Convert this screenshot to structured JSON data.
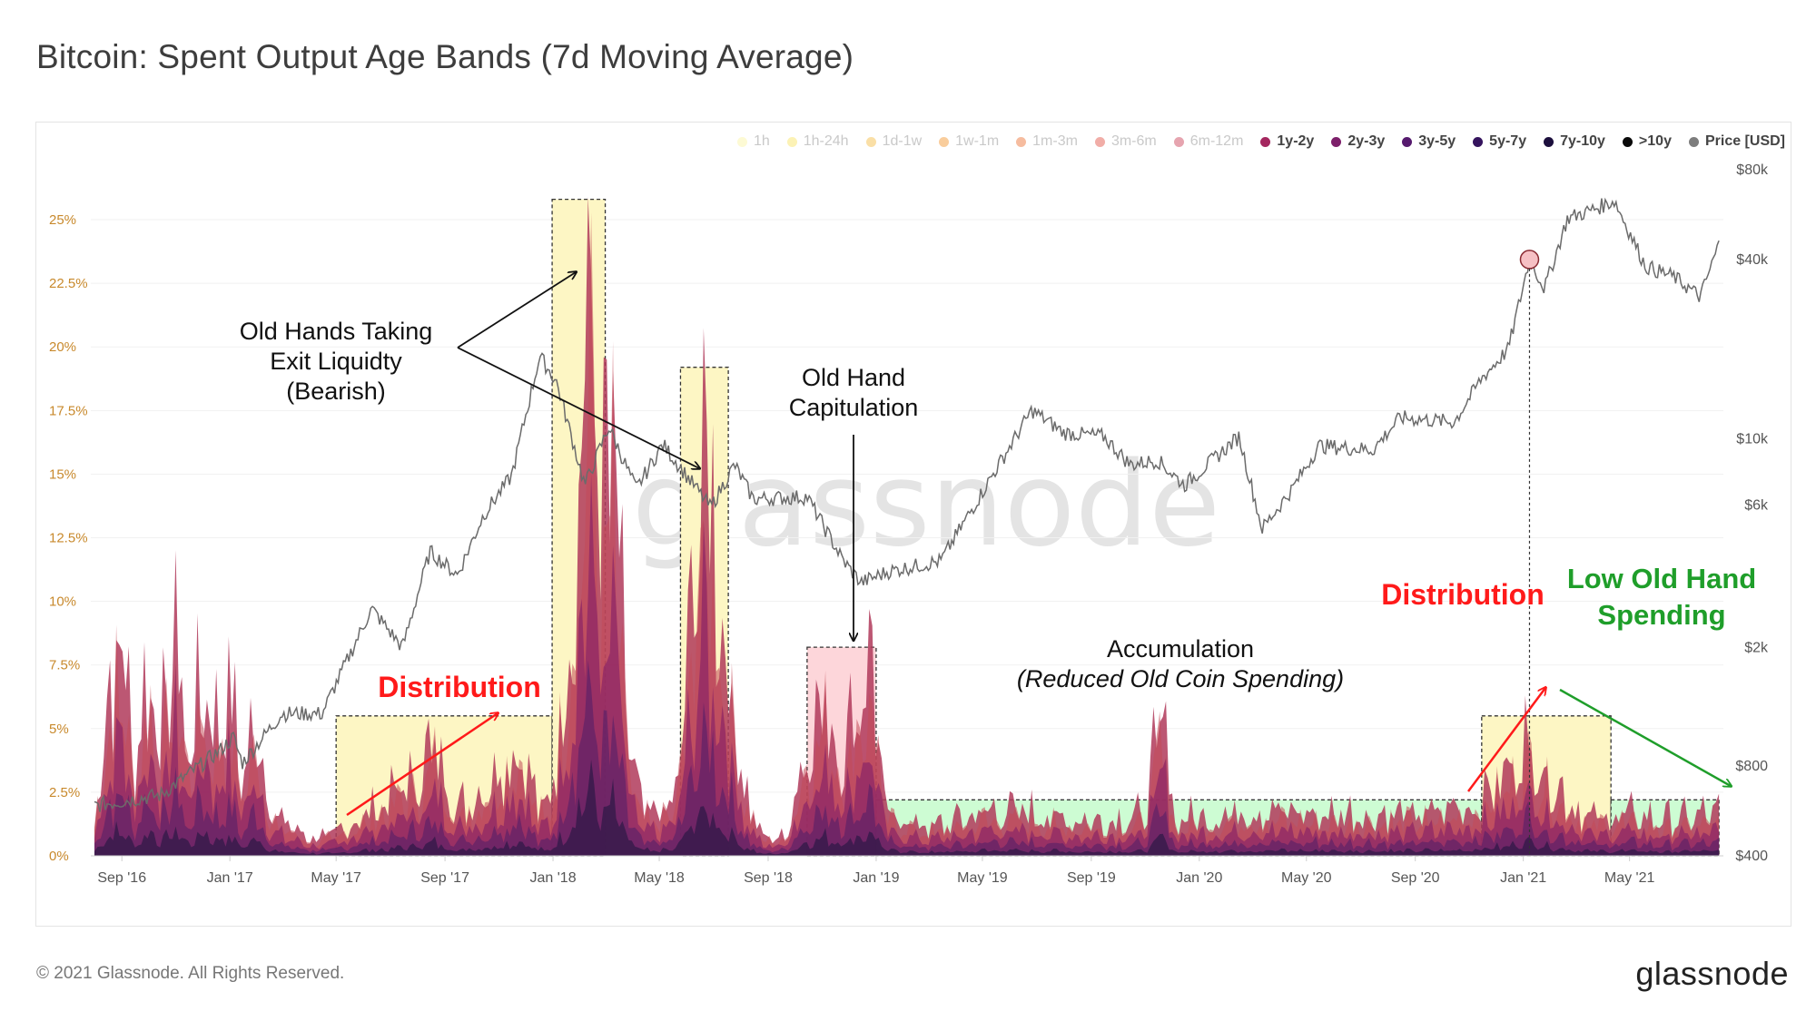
{
  "title": "Bitcoin: Spent Output Age Bands (7d Moving Average)",
  "footer": {
    "copyright": "© 2021 Glassnode. All Rights Reserved.",
    "logo": "glassnode"
  },
  "watermark": "glassnode",
  "legend": [
    {
      "label": "1h",
      "color": "#fbf5a0",
      "active": false
    },
    {
      "label": "1h-24h",
      "color": "#f8e35c",
      "active": false
    },
    {
      "label": "1d-1w",
      "color": "#f5b83a",
      "active": false
    },
    {
      "label": "1w-1m",
      "color": "#f19024",
      "active": false
    },
    {
      "label": "1m-3m",
      "color": "#ec6a2b",
      "active": false
    },
    {
      "label": "3m-6m",
      "color": "#e04a3c",
      "active": false
    },
    {
      "label": "6m-12m",
      "color": "#c8354d",
      "active": false
    },
    {
      "label": "1y-2y",
      "color": "#a4275f",
      "active": true
    },
    {
      "label": "2y-3y",
      "color": "#7d1f6a",
      "active": true
    },
    {
      "label": "3y-5y",
      "color": "#561a6e",
      "active": true
    },
    {
      "label": "5y-7y",
      "color": "#35145e",
      "active": true
    },
    {
      "label": "7y-10y",
      "color": "#1c0f3d",
      "active": true
    },
    {
      "label": ">10y",
      "color": "#0a0a0a",
      "active": true
    },
    {
      "label": "Price [USD]",
      "color": "#7d7d7d",
      "active": true
    }
  ],
  "chart_data": {
    "type": "area",
    "x_ticks": [
      "Sep '16",
      "Jan '17",
      "May '17",
      "Sep '17",
      "Jan '18",
      "May '18",
      "Sep '18",
      "Jan '19",
      "May '19",
      "Sep '19",
      "Jan '20",
      "May '20",
      "Sep '20",
      "Jan '21",
      "May '21"
    ],
    "x_range": [
      "2016-08-01",
      "2021-08-15"
    ],
    "y_left": {
      "ticks": [
        "0%",
        "2.5%",
        "5%",
        "7.5%",
        "10%",
        "12.5%",
        "15%",
        "17.5%",
        "20%",
        "22.5%",
        "25%"
      ],
      "range": [
        0,
        26.5
      ]
    },
    "y_right": {
      "ticks": [
        "$400",
        "$800",
        "$2k",
        "$6k",
        "$10k",
        "$40k",
        "$80k"
      ],
      "values": [
        400,
        800,
        2000,
        6000,
        10000,
        40000,
        80000
      ],
      "scale": "log"
    },
    "old_coin_spend_pct": [
      {
        "date": "2016-08-01",
        "value": 1.5
      },
      {
        "date": "2016-08-15",
        "value": 6.5
      },
      {
        "date": "2016-09-01",
        "value": 9.5
      },
      {
        "date": "2016-09-15",
        "value": 3.5
      },
      {
        "date": "2016-10-01",
        "value": 8.5
      },
      {
        "date": "2016-10-15",
        "value": 5.0
      },
      {
        "date": "2016-11-01",
        "value": 9.5
      },
      {
        "date": "2016-11-15",
        "value": 4.0
      },
      {
        "date": "2016-12-01",
        "value": 8.0
      },
      {
        "date": "2016-12-15",
        "value": 5.5
      },
      {
        "date": "2017-01-01",
        "value": 7.0
      },
      {
        "date": "2017-01-15",
        "value": 3.0
      },
      {
        "date": "2017-02-01",
        "value": 6.5
      },
      {
        "date": "2017-02-15",
        "value": 2.0
      },
      {
        "date": "2017-03-01",
        "value": 1.5
      },
      {
        "date": "2017-04-01",
        "value": 0.8
      },
      {
        "date": "2017-05-01",
        "value": 0.9
      },
      {
        "date": "2017-06-01",
        "value": 1.8
      },
      {
        "date": "2017-07-01",
        "value": 2.5
      },
      {
        "date": "2017-08-01",
        "value": 3.5
      },
      {
        "date": "2017-08-20",
        "value": 4.8
      },
      {
        "date": "2017-09-15",
        "value": 2.0
      },
      {
        "date": "2017-10-15",
        "value": 3.0
      },
      {
        "date": "2017-11-10",
        "value": 4.2
      },
      {
        "date": "2017-11-25",
        "value": 5.2
      },
      {
        "date": "2017-12-15",
        "value": 2.0
      },
      {
        "date": "2017-12-31",
        "value": 2.5
      },
      {
        "date": "2018-01-20",
        "value": 10.0
      },
      {
        "date": "2018-02-05",
        "value": 20.0
      },
      {
        "date": "2018-02-12",
        "value": 25.8
      },
      {
        "date": "2018-02-25",
        "value": 14.0
      },
      {
        "date": "2018-03-10",
        "value": 18.0
      },
      {
        "date": "2018-03-25",
        "value": 6.0
      },
      {
        "date": "2018-04-10",
        "value": 2.0
      },
      {
        "date": "2018-05-01",
        "value": 1.8
      },
      {
        "date": "2018-05-20",
        "value": 2.5
      },
      {
        "date": "2018-06-05",
        "value": 10.0
      },
      {
        "date": "2018-06-20",
        "value": 17.5
      },
      {
        "date": "2018-07-05",
        "value": 12.0
      },
      {
        "date": "2018-07-20",
        "value": 8.0
      },
      {
        "date": "2018-08-05",
        "value": 3.0
      },
      {
        "date": "2018-08-25",
        "value": 0.8
      },
      {
        "date": "2018-09-20",
        "value": 0.8
      },
      {
        "date": "2018-10-15",
        "value": 5.0
      },
      {
        "date": "2018-11-05",
        "value": 6.5
      },
      {
        "date": "2018-11-25",
        "value": 4.5
      },
      {
        "date": "2018-12-15",
        "value": 7.5
      },
      {
        "date": "2018-12-28",
        "value": 8.3
      },
      {
        "date": "2019-01-10",
        "value": 2.0
      },
      {
        "date": "2019-03-01",
        "value": 1.2
      },
      {
        "date": "2019-05-15",
        "value": 2.0
      },
      {
        "date": "2019-07-01",
        "value": 1.8
      },
      {
        "date": "2019-09-01",
        "value": 1.5
      },
      {
        "date": "2019-11-01",
        "value": 1.7
      },
      {
        "date": "2019-11-20",
        "value": 6.5
      },
      {
        "date": "2019-12-05",
        "value": 1.5
      },
      {
        "date": "2020-03-01",
        "value": 2.0
      },
      {
        "date": "2020-06-01",
        "value": 1.8
      },
      {
        "date": "2020-09-01",
        "value": 1.8
      },
      {
        "date": "2020-11-01",
        "value": 2.2
      },
      {
        "date": "2020-12-15",
        "value": 3.5
      },
      {
        "date": "2021-01-05",
        "value": 5.2
      },
      {
        "date": "2021-01-25",
        "value": 3.8
      },
      {
        "date": "2021-02-15",
        "value": 2.6
      },
      {
        "date": "2021-03-20",
        "value": 1.6
      },
      {
        "date": "2021-05-01",
        "value": 1.8
      },
      {
        "date": "2021-06-15",
        "value": 1.5
      },
      {
        "date": "2021-08-10",
        "value": 1.9
      }
    ],
    "price_usd": [
      {
        "date": "2016-08-01",
        "value": 590
      },
      {
        "date": "2016-10-15",
        "value": 640
      },
      {
        "date": "2016-12-20",
        "value": 900
      },
      {
        "date": "2017-01-05",
        "value": 1000
      },
      {
        "date": "2017-01-15",
        "value": 820
      },
      {
        "date": "2017-03-01",
        "value": 1200
      },
      {
        "date": "2017-04-15",
        "value": 1200
      },
      {
        "date": "2017-06-10",
        "value": 2700
      },
      {
        "date": "2017-07-15",
        "value": 2000
      },
      {
        "date": "2017-08-15",
        "value": 4200
      },
      {
        "date": "2017-09-15",
        "value": 3500
      },
      {
        "date": "2017-10-15",
        "value": 5600
      },
      {
        "date": "2017-11-15",
        "value": 7500
      },
      {
        "date": "2017-12-17",
        "value": 19000
      },
      {
        "date": "2018-01-05",
        "value": 15500
      },
      {
        "date": "2018-02-06",
        "value": 7000
      },
      {
        "date": "2018-03-05",
        "value": 11000
      },
      {
        "date": "2018-04-05",
        "value": 6800
      },
      {
        "date": "2018-05-05",
        "value": 9600
      },
      {
        "date": "2018-06-28",
        "value": 5900
      },
      {
        "date": "2018-07-25",
        "value": 8200
      },
      {
        "date": "2018-08-15",
        "value": 6300
      },
      {
        "date": "2018-10-15",
        "value": 6400
      },
      {
        "date": "2018-11-25",
        "value": 3900
      },
      {
        "date": "2018-12-15",
        "value": 3300
      },
      {
        "date": "2019-01-15",
        "value": 3600
      },
      {
        "date": "2019-03-15",
        "value": 3900
      },
      {
        "date": "2019-05-15",
        "value": 7800
      },
      {
        "date": "2019-06-26",
        "value": 12500
      },
      {
        "date": "2019-08-01",
        "value": 10500
      },
      {
        "date": "2019-09-15",
        "value": 10200
      },
      {
        "date": "2019-10-15",
        "value": 8200
      },
      {
        "date": "2019-11-15",
        "value": 8500
      },
      {
        "date": "2019-12-15",
        "value": 7000
      },
      {
        "date": "2020-02-15",
        "value": 10200
      },
      {
        "date": "2020-03-12",
        "value": 5000
      },
      {
        "date": "2020-04-15",
        "value": 6800
      },
      {
        "date": "2020-05-15",
        "value": 9500
      },
      {
        "date": "2020-07-15",
        "value": 9200
      },
      {
        "date": "2020-08-15",
        "value": 11800
      },
      {
        "date": "2020-10-15",
        "value": 11400
      },
      {
        "date": "2020-11-15",
        "value": 16000
      },
      {
        "date": "2020-12-15",
        "value": 20000
      },
      {
        "date": "2021-01-08",
        "value": 40000
      },
      {
        "date": "2021-01-25",
        "value": 32000
      },
      {
        "date": "2021-02-20",
        "value": 55000
      },
      {
        "date": "2021-03-15",
        "value": 58000
      },
      {
        "date": "2021-04-14",
        "value": 63000
      },
      {
        "date": "2021-05-19",
        "value": 38000
      },
      {
        "date": "2021-06-20",
        "value": 35000
      },
      {
        "date": "2021-07-20",
        "value": 30000
      },
      {
        "date": "2021-08-10",
        "value": 45000
      }
    ],
    "regions": [
      {
        "kind": "distribution",
        "start": "2017-05-01",
        "end": "2017-12-31",
        "top": 5.5,
        "color": "#fdf6c4"
      },
      {
        "kind": "exit",
        "start": "2017-12-31",
        "end": "2018-03-01",
        "top": 25.8,
        "color": "#fdf6c4"
      },
      {
        "kind": "exit",
        "start": "2018-05-25",
        "end": "2018-07-18",
        "top": 19.2,
        "color": "#fdf6c4"
      },
      {
        "kind": "capitulation",
        "start": "2018-10-15",
        "end": "2019-01-01",
        "top": 8.2,
        "color": "#fdd6da"
      },
      {
        "kind": "accumulation",
        "start": "2019-01-01",
        "end": "2020-11-15",
        "top": 2.2,
        "color": "#cdfcd3"
      },
      {
        "kind": "distribution",
        "start": "2020-11-15",
        "end": "2021-04-10",
        "top": 5.5,
        "color": "#fdf6c4"
      },
      {
        "kind": "low",
        "start": "2021-04-10",
        "end": "2021-08-10",
        "top": 2.2,
        "color": "#cdfcd3"
      }
    ],
    "annotations": {
      "old_hands": [
        "Old Hands Taking",
        "Exit Liquidty",
        "(Bearish)"
      ],
      "capitulation": [
        "Old Hand",
        "Capitulation"
      ],
      "accumulation": "Accumulation",
      "accumulation_sub": "(Reduced Old Coin Spending)",
      "distribution": "Distribution",
      "low_spending": [
        "Low Old Hand",
        "Spending"
      ]
    }
  }
}
